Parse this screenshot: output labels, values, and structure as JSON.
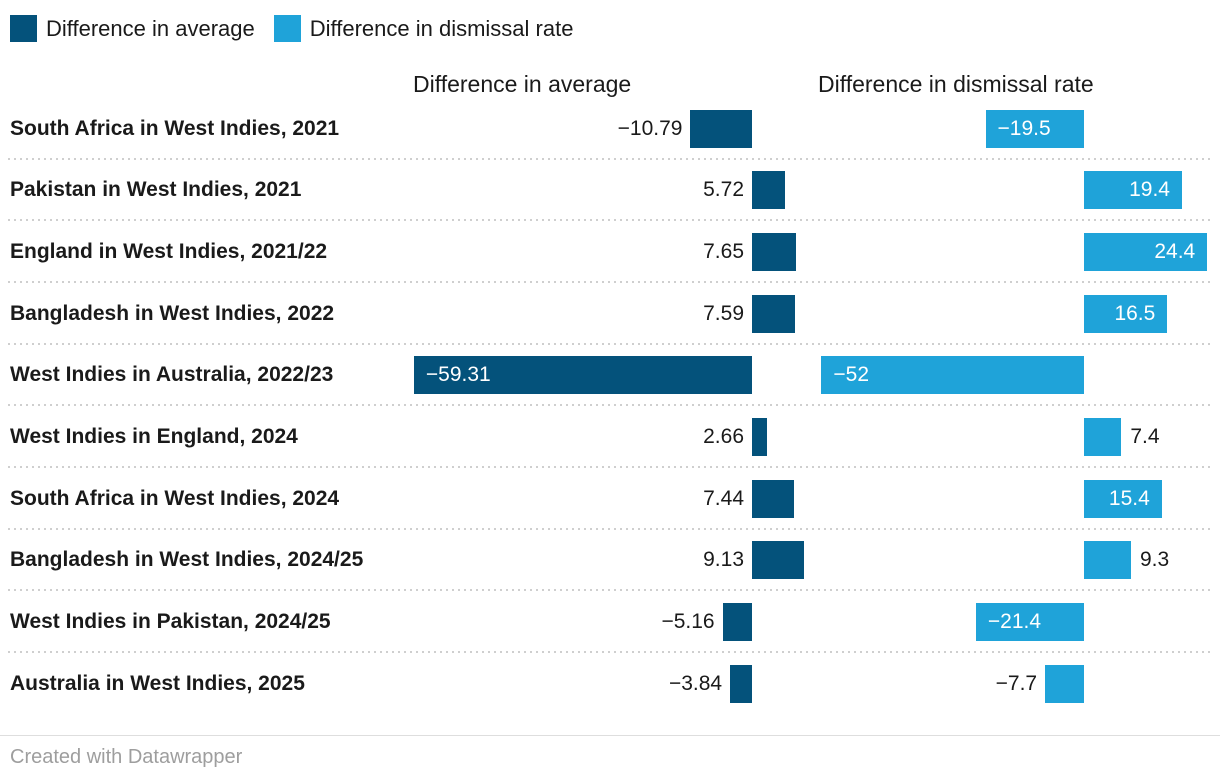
{
  "legend": {
    "items": [
      {
        "label": "Difference in average",
        "color": "#04527b"
      },
      {
        "label": "Difference in dismissal rate",
        "color": "#1fa3d9"
      }
    ]
  },
  "columns": [
    {
      "header": "Difference in average"
    },
    {
      "header": "Difference in dismissal rate"
    }
  ],
  "chart_data": {
    "type": "bar",
    "orientation": "horizontal",
    "layout": "split-bars-two-columns",
    "grid": "dotted-row-separators",
    "legend_position": "top-left",
    "categories": [
      "South Africa in West Indies, 2021",
      "Pakistan in West Indies, 2021",
      "England in West Indies, 2021/22",
      "Bangladesh in West Indies, 2022",
      "West Indies in Australia, 2022/23",
      "West Indies in England, 2024",
      "South Africa in West Indies, 2024",
      "Bangladesh in West Indies, 2024/25",
      "West Indies in Pakistan, 2024/25",
      "Australia in West Indies, 2025"
    ],
    "series": [
      {
        "name": "Difference in average",
        "color": "#04527b",
        "values": [
          -10.79,
          5.72,
          7.65,
          7.59,
          -59.31,
          2.66,
          7.44,
          9.13,
          -5.16,
          -3.84
        ]
      },
      {
        "name": "Difference in dismissal rate",
        "color": "#1fa3d9",
        "values": [
          -19.5,
          19.4,
          24.4,
          16.5,
          -52,
          7.4,
          15.4,
          9.3,
          -21.4,
          -7.7
        ]
      }
    ],
    "value_labels": {
      "minus_glyph": "−",
      "inside_color": "#ffffff",
      "outside_color": "#1a1a1a"
    }
  },
  "footer": {
    "credit": "Created with Datawrapper"
  }
}
